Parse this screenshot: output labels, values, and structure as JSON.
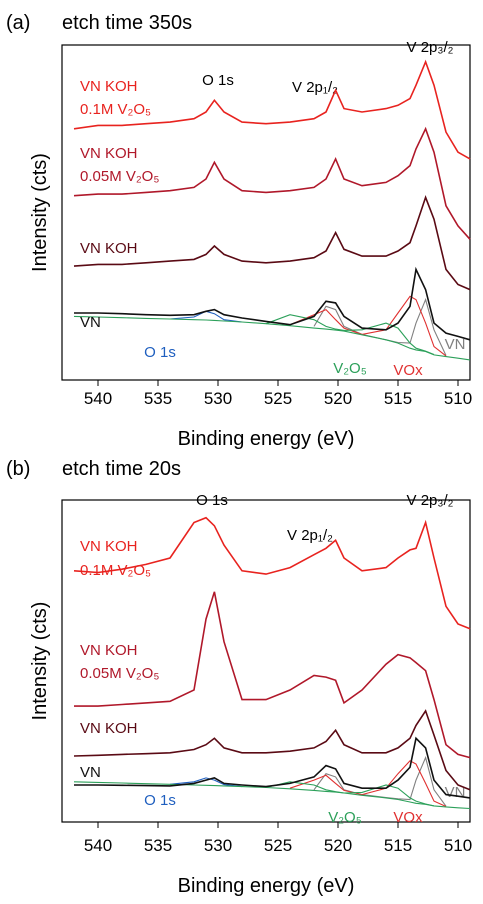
{
  "chart_data": [
    {
      "type": "line",
      "label": "(a)",
      "title": "etch time 350s",
      "xlabel": "Binding energy (eV)",
      "ylabel": "Intensity (cts)",
      "xlim": [
        543,
        509
      ],
      "xticks": [
        540,
        535,
        530,
        525,
        520,
        515,
        510
      ],
      "ylim": [
        0,
        100
      ],
      "annotations": [
        "O 1s",
        "V 2p₁/₂",
        "V 2p₃/₂"
      ],
      "x": [
        542,
        540,
        538,
        536,
        534,
        532,
        531,
        530.3,
        529.5,
        528,
        526,
        524,
        522,
        521,
        520.2,
        519.5,
        518,
        516,
        515,
        514,
        513.5,
        512.7,
        512,
        511,
        510,
        509
      ],
      "series": [
        {
          "name": [
            "VN KOH",
            "0.1M V₂O₅"
          ],
          "color": "#e8231f",
          "values": [
            75,
            76,
            76,
            76.5,
            77,
            78,
            80,
            83.5,
            80,
            77,
            76.5,
            77,
            78,
            80,
            86.5,
            81,
            80,
            81,
            82,
            84,
            88,
            95,
            88,
            74,
            68,
            66
          ]
        },
        {
          "name": [
            "VN KOH",
            "0.05M V₂O₅"
          ],
          "color": "#b0182a",
          "values": [
            55,
            55.5,
            55.5,
            56,
            56.5,
            57.5,
            60,
            65,
            60,
            56.5,
            56,
            56.5,
            57.5,
            60,
            66,
            60,
            58,
            59,
            61,
            64,
            69,
            75,
            68,
            52,
            46,
            42
          ]
        },
        {
          "name": "VN KOH",
          "color": "#5a0a14",
          "values": [
            34,
            34.5,
            34.5,
            35,
            35.5,
            36,
            37.5,
            40,
            37.5,
            35.5,
            35,
            35.5,
            36.5,
            38.5,
            44,
            39,
            37,
            37,
            38.5,
            41,
            46,
            54.5,
            48,
            33,
            28.5,
            27
          ]
        },
        {
          "name": "VN",
          "color": "#111111",
          "values": [
            20,
            20,
            19.8,
            19.5,
            19.3,
            19.5,
            20.5,
            21,
            19.5,
            18.5,
            17.5,
            16.5,
            19,
            23.5,
            23,
            19,
            15.5,
            15,
            17,
            22,
            33,
            27,
            17,
            14,
            13,
            12
          ]
        },
        {
          "color": "#2ca05a",
          "values": [
            19,
            18.8,
            18.6,
            18.4,
            18.2,
            18,
            17.9,
            17.8,
            17.6,
            17.3,
            16.8,
            16.2,
            15.5,
            15.2,
            14.9,
            14.6,
            13.5,
            12,
            11,
            9.5,
            9,
            8.5,
            7.5,
            7,
            6.5,
            6
          ]
        },
        {
          "name": "O 1s",
          "color": "#1f5fbf",
          "values": [
            null,
            null,
            null,
            null,
            18.2,
            18.8,
            20.5,
            19.8,
            18,
            17.3,
            null,
            null,
            null,
            null,
            null,
            null,
            null,
            null,
            null,
            null,
            null,
            null,
            null,
            null,
            null,
            null
          ]
        },
        {
          "name": "V₂O₅",
          "color": "#2ca05a",
          "values": [
            null,
            null,
            null,
            null,
            null,
            null,
            null,
            null,
            null,
            null,
            16.8,
            19.5,
            18,
            16,
            15.2,
            14.8,
            15,
            17,
            15.5,
            11,
            9.5,
            8.6,
            7.6,
            null,
            null,
            null
          ]
        },
        {
          "name": "VOx",
          "color": "#e03030",
          "values": [
            null,
            null,
            null,
            null,
            null,
            null,
            null,
            null,
            null,
            null,
            null,
            16.5,
            19.5,
            21,
            18,
            15.5,
            13.6,
            15,
            20,
            25,
            24,
            17,
            10,
            7.2,
            null,
            null
          ]
        },
        {
          "name": "VN",
          "color": "#808080",
          "values": [
            null,
            null,
            null,
            null,
            null,
            null,
            null,
            null,
            null,
            null,
            null,
            null,
            16,
            22,
            21,
            16,
            13.6,
            12,
            11.2,
            11,
            17,
            24,
            15,
            7.3,
            null,
            null
          ]
        }
      ]
    },
    {
      "type": "line",
      "label": "(b)",
      "title": "etch time 20s",
      "xlabel": "Binding energy (eV)",
      "ylabel": "Intensity (cts)",
      "xlim": [
        543,
        509
      ],
      "xticks": [
        540,
        535,
        530,
        525,
        520,
        515,
        510
      ],
      "ylim": [
        0,
        100
      ],
      "annotations": [
        "O 1s",
        "V 2p₁/₂",
        "V 2p₃/₂"
      ],
      "x": [
        542,
        540,
        538,
        536,
        534,
        532,
        531,
        530.3,
        529.5,
        528,
        526,
        524,
        522,
        521,
        520.2,
        519.5,
        518,
        516,
        515,
        514,
        513.5,
        512.7,
        512,
        511,
        510,
        509
      ],
      "series": [
        {
          "name": [
            "VN KOH",
            "0.1M V₂O₅"
          ],
          "color": "#e8231f",
          "values": [
            78,
            77.5,
            78.5,
            80,
            82,
            93,
            94.5,
            92,
            86,
            78,
            77,
            79,
            83,
            85,
            87.5,
            82,
            78,
            79,
            82,
            84.5,
            85,
            93,
            82,
            67,
            61.5,
            60
          ]
        },
        {
          "name": [
            "VN KOH",
            "0.05M V₂O₅"
          ],
          "color": "#b0182a",
          "values": [
            36,
            36,
            36.5,
            37,
            37.5,
            41,
            63,
            71.5,
            56,
            38,
            38,
            41,
            45.5,
            45,
            44,
            37,
            41,
            49,
            52,
            51,
            49.5,
            47,
            38,
            24,
            21,
            20
          ]
        },
        {
          "name": "VN KOH",
          "color": "#5a0a14",
          "values": [
            20.5,
            20.7,
            21,
            21.2,
            21.5,
            22.5,
            24,
            26,
            23,
            21.5,
            21.5,
            22,
            23,
            25,
            28.5,
            24,
            21.5,
            21.5,
            23,
            26,
            30,
            34.5,
            27,
            16,
            11.5,
            10
          ]
        },
        {
          "name": "VN",
          "color": "#111111",
          "values": [
            11.5,
            11.5,
            11.4,
            11.3,
            11.2,
            12,
            13,
            13.7,
            12,
            11.5,
            11,
            12,
            14,
            17.5,
            16.5,
            12,
            10.5,
            10.5,
            13,
            17,
            26,
            23,
            13,
            8.5,
            8,
            7.5
          ]
        },
        {
          "color": "#2ca05a",
          "values": [
            12.5,
            12.3,
            12.1,
            11.9,
            11.7,
            11.5,
            11.4,
            11.3,
            11.2,
            11,
            10.7,
            10.3,
            9.8,
            9.5,
            9.3,
            9,
            8.3,
            7.5,
            7,
            6.2,
            5.8,
            5.5,
            5,
            4.7,
            4.4,
            4.2
          ]
        },
        {
          "name": "O 1s",
          "color": "#1f5fbf",
          "values": [
            null,
            null,
            null,
            null,
            11.7,
            12.5,
            13.7,
            13,
            11.6,
            11,
            null,
            null,
            null,
            null,
            null,
            null,
            null,
            null,
            null,
            null,
            null,
            null,
            null,
            null,
            null,
            null
          ]
        },
        {
          "name": "V₂O₅",
          "color": "#2ca05a",
          "values": [
            null,
            null,
            null,
            null,
            null,
            null,
            null,
            null,
            null,
            null,
            10.7,
            12.5,
            11.5,
            10,
            9.4,
            9,
            9.2,
            11.5,
            10.5,
            7.5,
            6.5,
            5.6,
            5,
            null,
            null,
            null
          ]
        },
        {
          "name": "VOx",
          "color": "#e03030",
          "values": [
            null,
            null,
            null,
            null,
            null,
            null,
            null,
            null,
            null,
            null,
            null,
            10.5,
            13,
            14.5,
            12,
            9.8,
            8.5,
            10.5,
            15,
            19,
            18,
            12,
            6.5,
            4.8,
            null,
            null
          ]
        },
        {
          "name": "VN",
          "color": "#808080",
          "values": [
            null,
            null,
            null,
            null,
            null,
            null,
            null,
            null,
            null,
            null,
            null,
            null,
            10,
            15,
            14,
            10,
            8.5,
            7.6,
            7.2,
            7,
            13,
            20,
            10,
            4.9,
            null,
            null
          ]
        }
      ]
    }
  ]
}
